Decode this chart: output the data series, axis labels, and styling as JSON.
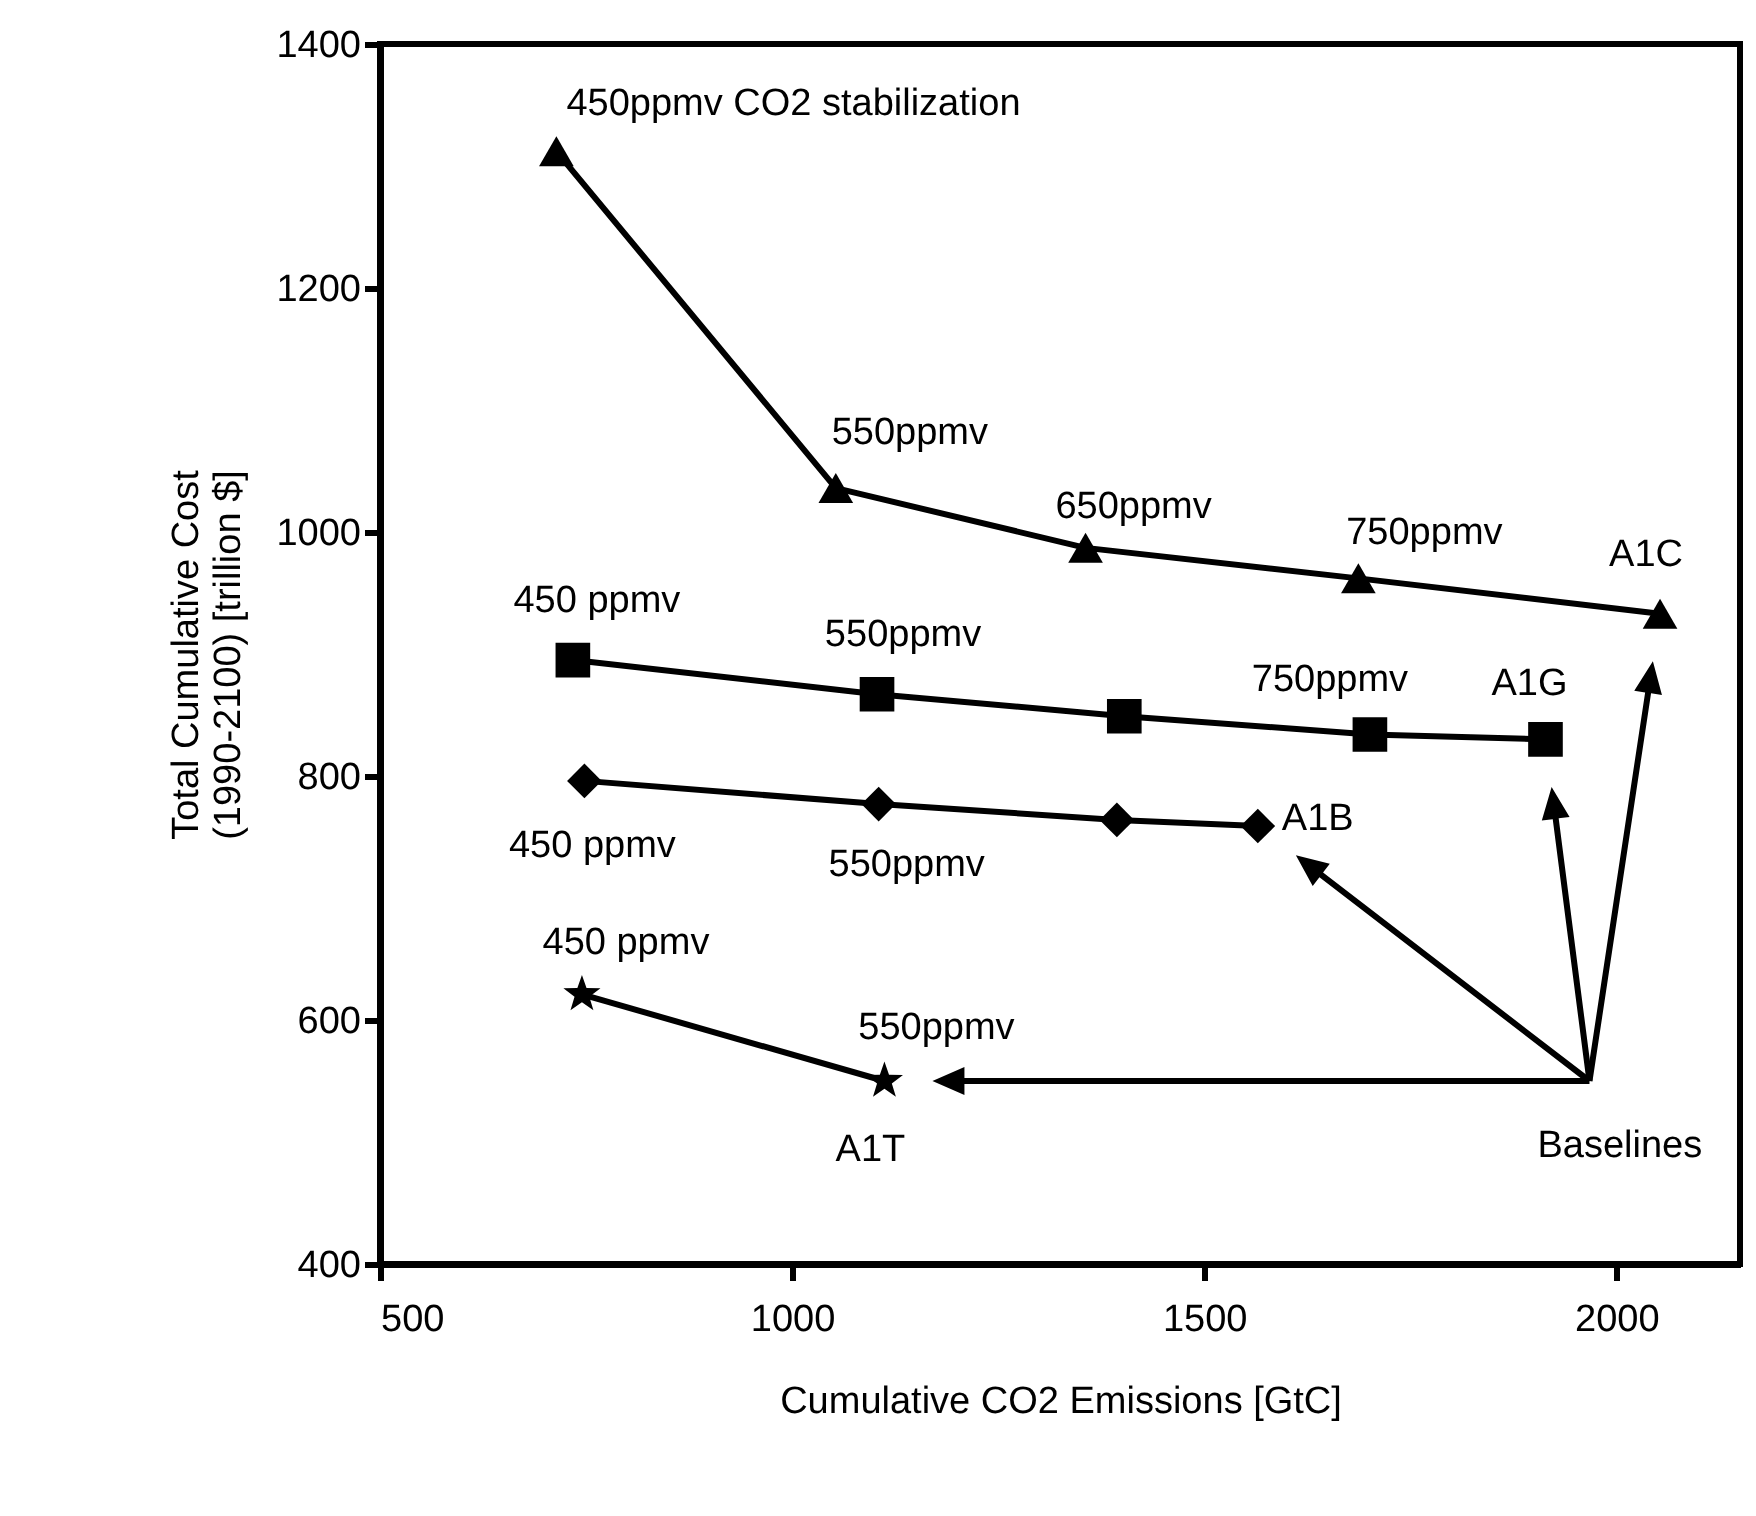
{
  "chart_data": {
    "type": "line",
    "xlabel": "Cumulative CO2 Emissions [GtC]",
    "ylabel": "Total Cumulative Cost\n(1990-2100) [trillion $]",
    "xlim": [
      500,
      2150
    ],
    "xticks": [
      500,
      1000,
      1500,
      2000
    ],
    "ylim": [
      400,
      1400
    ],
    "yticks": [
      400,
      600,
      800,
      1000,
      1200,
      1400
    ],
    "grid": false,
    "series": [
      {
        "name": "A1C",
        "color": "#000000",
        "marker": "triangle",
        "x": [
          714,
          1053,
          1356,
          1687,
          2053
        ],
        "values": [
          1312,
          1036,
          987,
          962,
          933
        ]
      },
      {
        "name": "A1G",
        "color": "#000000",
        "marker": "square",
        "x": [
          734,
          1103,
          1403,
          1701,
          1914
        ],
        "values": [
          895,
          867,
          849,
          834,
          830
        ]
      },
      {
        "name": "A1B",
        "color": "#000000",
        "marker": "diamond",
        "x": [
          748,
          1105,
          1394,
          1565
        ],
        "values": [
          796,
          777,
          764,
          759
        ]
      },
      {
        "name": "A1T",
        "color": "#000000",
        "marker": "star",
        "x": [
          745,
          1112
        ],
        "values": [
          621,
          550
        ]
      }
    ],
    "annotations": [
      {
        "text": "450ppmv CO2 stabilization",
        "x": 714,
        "y": 1312
      },
      {
        "text": "550ppmv",
        "x": 1053,
        "y": 1036
      },
      {
        "text": "650ppmv",
        "x": 1356,
        "y": 987
      },
      {
        "text": "750ppmv",
        "x": 1687,
        "y": 962
      },
      {
        "text": "450 ppmv",
        "x": 734,
        "y": 895
      },
      {
        "text": "550ppmv",
        "x": 1103,
        "y": 867
      },
      {
        "text": "750ppmv",
        "x": 1701,
        "y": 834
      },
      {
        "text": "450 ppmv",
        "x": 748,
        "y": 796
      },
      {
        "text": "550ppmv",
        "x": 1105,
        "y": 777
      },
      {
        "text": "450 ppmv",
        "x": 745,
        "y": 621
      },
      {
        "text": "550ppmv",
        "x": 1112,
        "y": 550
      },
      "Baselines"
    ]
  }
}
